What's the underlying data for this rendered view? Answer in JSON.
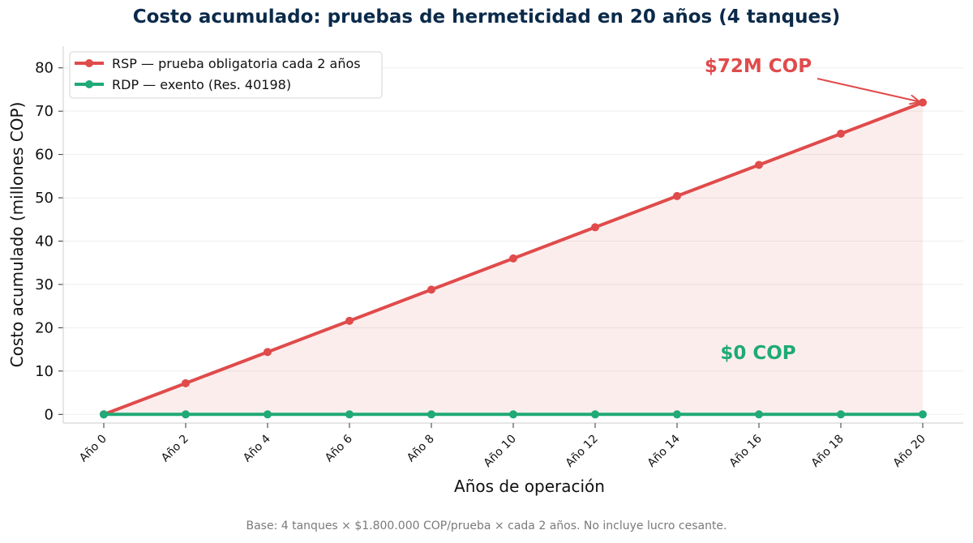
{
  "chart_data": {
    "type": "line",
    "title": "Costo acumulado: pruebas de hermeticidad en 20 años (4 tanques)",
    "xlabel": "Años de operación",
    "ylabel": "Costo acumulado (millones COP)",
    "categories": [
      "Año 0",
      "Año 2",
      "Año 4",
      "Año 6",
      "Año 8",
      "Año 10",
      "Año 12",
      "Año 14",
      "Año 16",
      "Año 18",
      "Año 20"
    ],
    "ylim": [
      -2,
      85
    ],
    "yticks": [
      0,
      10,
      20,
      30,
      40,
      50,
      60,
      70,
      80
    ],
    "grid": true,
    "legend_position": "top-left",
    "series": [
      {
        "name": "RSP — prueba obligatoria cada 2 años",
        "color": "#e04b4b",
        "values": [
          0,
          7.2,
          14.4,
          21.6,
          28.8,
          36.0,
          43.2,
          50.4,
          57.6,
          64.8,
          72.0
        ],
        "fill_area": true
      },
      {
        "name": "RDP — exento (Res. 40198)",
        "color": "#1faa77",
        "values": [
          0,
          0,
          0,
          0,
          0,
          0,
          0,
          0,
          0,
          0,
          0
        ],
        "fill_area": false
      }
    ],
    "annotations": [
      {
        "text": "$72M COP",
        "color": "#e04b4b",
        "points_to": [
          "Año 20",
          72
        ]
      },
      {
        "text": "$0 COP",
        "color": "#1faa77"
      }
    ]
  },
  "footnote": "Base: 4 tanques × $1.800.000 COP/prueba × cada 2 años. No incluye lucro cesante."
}
